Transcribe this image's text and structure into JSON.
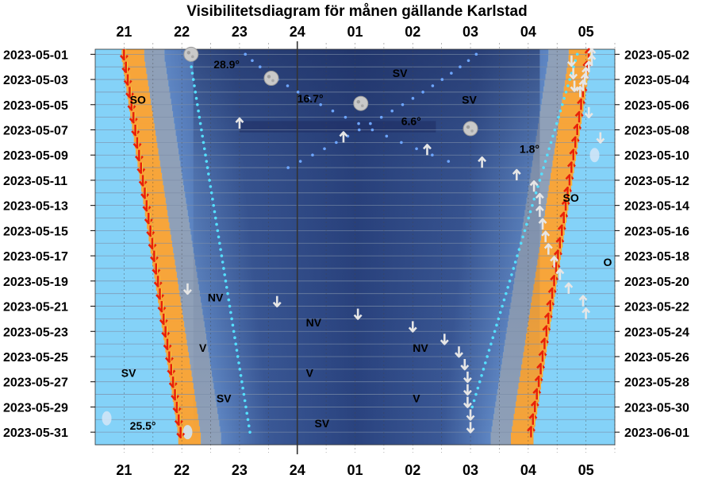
{
  "chart_data": {
    "type": "visibility-diagram",
    "title": "Visibilitetsdiagram för månen gällande Karlstad",
    "x_hours": [
      "21",
      "22",
      "23",
      "24",
      "01",
      "02",
      "03",
      "04",
      "05"
    ],
    "x_range_hours": [
      20.5,
      29.5
    ],
    "dates_left": [
      "2023-05-01",
      "2023-05-03",
      "2023-05-05",
      "2023-05-07",
      "2023-05-09",
      "2023-05-11",
      "2023-05-13",
      "2023-05-15",
      "2023-05-17",
      "2023-05-19",
      "2023-05-21",
      "2023-05-23",
      "2023-05-25",
      "2023-05-27",
      "2023-05-29",
      "2023-05-31"
    ],
    "dates_right": [
      "2023-05-02",
      "2023-05-04",
      "2023-05-06",
      "2023-05-08",
      "2023-05-10",
      "2023-05-12",
      "2023-05-14",
      "2023-05-16",
      "2023-05-18",
      "2023-05-20",
      "2023-05-22",
      "2023-05-24",
      "2023-05-26",
      "2023-05-28",
      "2023-05-30",
      "2023-06-01"
    ],
    "sunset_hour": {
      "start": 21.0,
      "end": 21.98
    },
    "sunrise_hour": {
      "start": 29.05,
      "end": 28.05
    },
    "moon_altitude_labels": [
      {
        "text": "28.9°",
        "hour": 22.55,
        "day": 1.8
      },
      {
        "text": "16.7°",
        "hour": 24.0,
        "day": 4.5
      },
      {
        "text": "6.6°",
        "hour": 25.8,
        "day": 6.3
      },
      {
        "text": "1.8°",
        "hour": 27.85,
        "day": 8.5
      },
      {
        "text": "25.5°",
        "hour": 21.1,
        "day": 30.5
      }
    ],
    "direction_labels": [
      {
        "text": "SV",
        "hour": 25.65,
        "day": 2.5
      },
      {
        "text": "SO",
        "hour": 21.1,
        "day": 4.6
      },
      {
        "text": "SV",
        "hour": 26.85,
        "day": 4.6
      },
      {
        "text": "SO",
        "hour": 28.6,
        "day": 12.4
      },
      {
        "text": "O",
        "hour": 29.3,
        "day": 17.5
      },
      {
        "text": "NV",
        "hour": 22.45,
        "day": 20.3
      },
      {
        "text": "NV",
        "hour": 24.15,
        "day": 22.3
      },
      {
        "text": "V",
        "hour": 22.3,
        "day": 24.3
      },
      {
        "text": "NV",
        "hour": 26.0,
        "day": 24.3
      },
      {
        "text": "SV",
        "hour": 20.95,
        "day": 26.3
      },
      {
        "text": "V",
        "hour": 24.15,
        "day": 26.3
      },
      {
        "text": "SV",
        "hour": 22.6,
        "day": 28.3
      },
      {
        "text": "V",
        "hour": 26.0,
        "day": 28.3
      },
      {
        "text": "SV",
        "hour": 24.3,
        "day": 30.3
      }
    ],
    "moon_phase_markers": [
      {
        "hour": 22.16,
        "day": 1.0,
        "phase": "full"
      },
      {
        "hour": 23.55,
        "day": 2.9,
        "phase": "full"
      },
      {
        "hour": 25.1,
        "day": 4.9,
        "phase": "full"
      },
      {
        "hour": 27.0,
        "day": 6.9,
        "phase": "gibbous"
      },
      {
        "hour": 29.15,
        "day": 9.0,
        "phase": "waning"
      },
      {
        "hour": 20.7,
        "day": 29.9,
        "phase": "crescent"
      },
      {
        "hour": 22.1,
        "day": 31.0,
        "phase": "crescent"
      }
    ],
    "rise_arrows": [
      {
        "hour": 29.1,
        "day": 1.0
      },
      {
        "hour": 29.1,
        "day": 1.5
      },
      {
        "hour": 29.05,
        "day": 2.0
      },
      {
        "hour": 29.0,
        "day": 2.5
      },
      {
        "hour": 28.98,
        "day": 3.0
      },
      {
        "hour": 28.95,
        "day": 3.5
      },
      {
        "hour": 28.9,
        "day": 4.0
      },
      {
        "hour": 23.0,
        "day": 6.5
      },
      {
        "hour": 24.8,
        "day": 7.6
      },
      {
        "hour": 26.25,
        "day": 8.6
      },
      {
        "hour": 27.2,
        "day": 9.6
      },
      {
        "hour": 27.8,
        "day": 10.6
      },
      {
        "hour": 28.1,
        "day": 11.5
      },
      {
        "hour": 28.2,
        "day": 12.5
      },
      {
        "hour": 28.2,
        "day": 13.5
      },
      {
        "hour": 28.25,
        "day": 14.5
      },
      {
        "hour": 28.3,
        "day": 15.5
      },
      {
        "hour": 28.35,
        "day": 16.5
      },
      {
        "hour": 28.45,
        "day": 17.5
      },
      {
        "hour": 28.55,
        "day": 18.5
      },
      {
        "hour": 28.7,
        "day": 19.6
      },
      {
        "hour": 28.95,
        "day": 20.6
      },
      {
        "hour": 29.0,
        "day": 21.6
      }
    ],
    "set_arrows": [
      {
        "hour": 28.75,
        "day": 1.5
      },
      {
        "hour": 28.78,
        "day": 2.5
      },
      {
        "hour": 28.8,
        "day": 3.5
      },
      {
        "hour": 29.05,
        "day": 5.6
      },
      {
        "hour": 29.25,
        "day": 7.6
      },
      {
        "hour": 22.1,
        "day": 19.6
      },
      {
        "hour": 23.65,
        "day": 20.6
      },
      {
        "hour": 25.05,
        "day": 21.6
      },
      {
        "hour": 26.0,
        "day": 22.6
      },
      {
        "hour": 26.55,
        "day": 23.6
      },
      {
        "hour": 26.8,
        "day": 24.6
      },
      {
        "hour": 26.9,
        "day": 25.6
      },
      {
        "hour": 26.95,
        "day": 26.6
      },
      {
        "hour": 26.95,
        "day": 27.6
      },
      {
        "hour": 26.95,
        "day": 28.6
      },
      {
        "hour": 27.0,
        "day": 29.6
      },
      {
        "hour": 27.0,
        "day": 30.6
      }
    ],
    "colors": {
      "day_sky": "#84d2f8",
      "twilight_orange": "#f7a53a",
      "night_dark": "#243a72",
      "night_mid": "#4d6fae",
      "sun_arrow": "#e8200a",
      "moon_arrow": "#e6e6e6",
      "moon_dot": "#6ea6ff",
      "moon_dot_light": "#55e0ff"
    }
  }
}
